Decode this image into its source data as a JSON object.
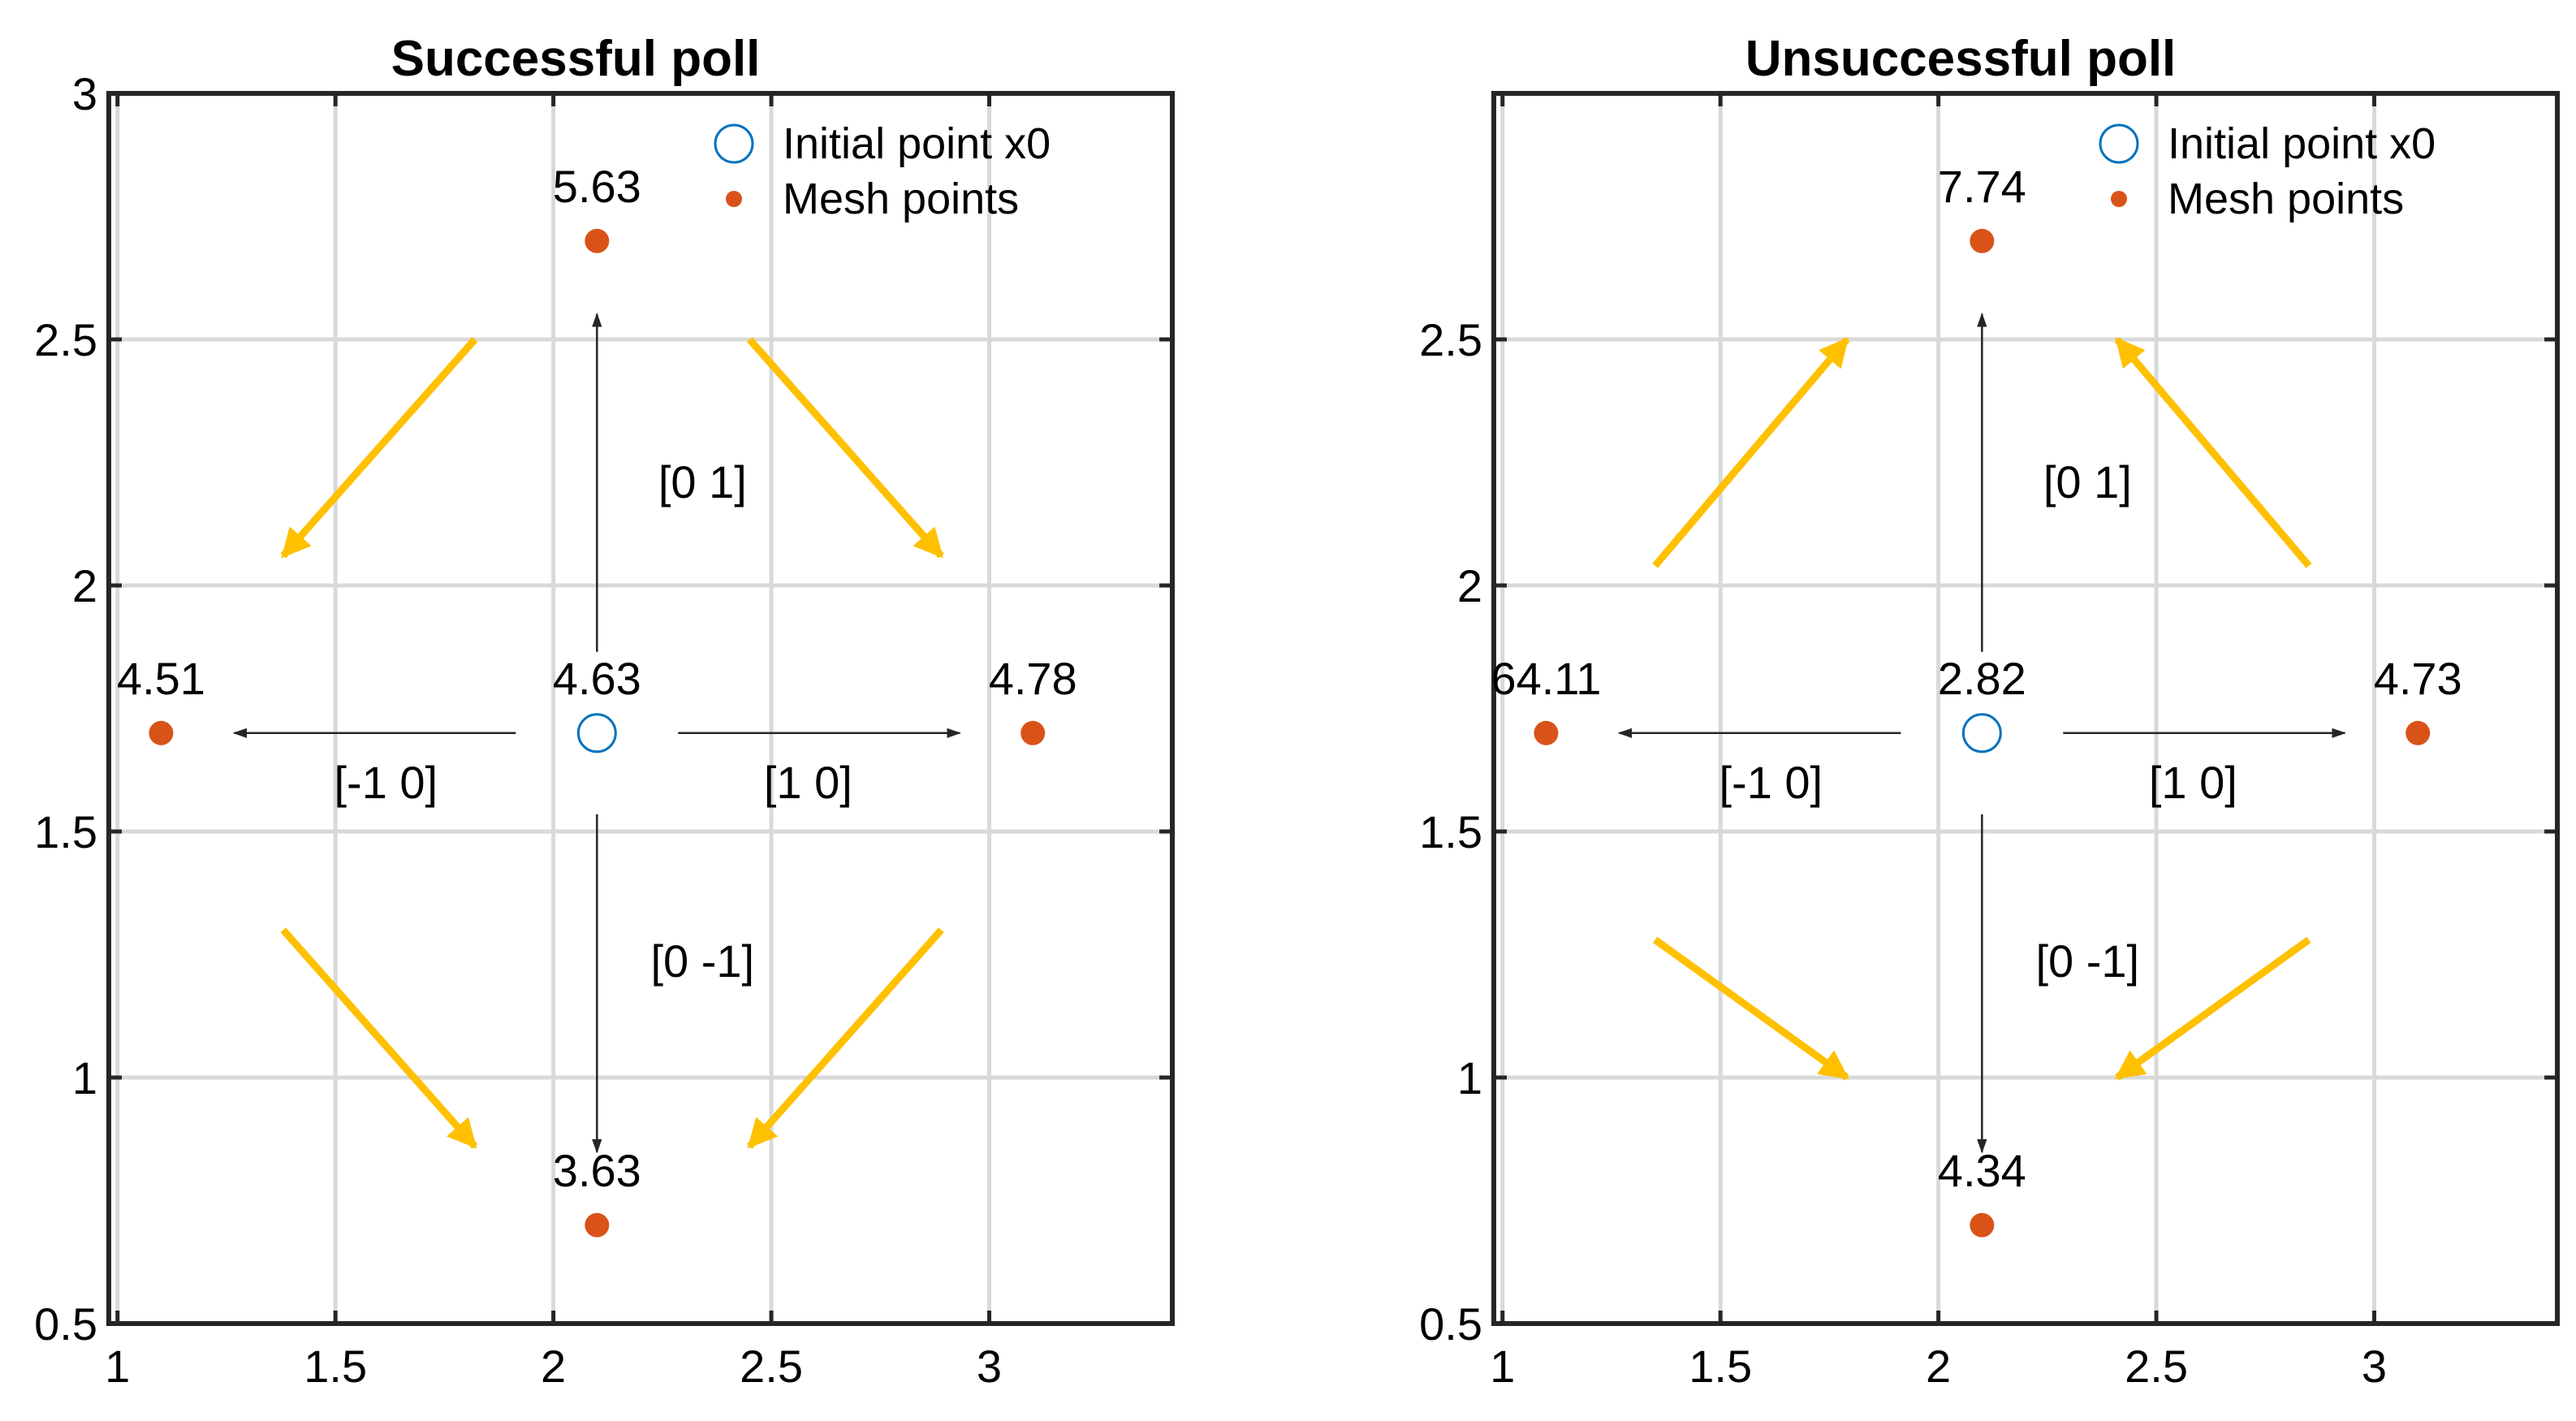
{
  "chart_data": [
    {
      "type": "scatter",
      "title": "Successful poll",
      "xlim": [
        0.98,
        3.42
      ],
      "ylim": [
        0.5,
        3.0
      ],
      "xticks": [
        1,
        1.5,
        2,
        2.5,
        3
      ],
      "xtick_labels": [
        "1",
        "1.5",
        "2",
        "2.5",
        "3"
      ],
      "yticks": [
        0.5,
        1,
        1.5,
        2,
        2.5,
        3
      ],
      "ytick_labels": [
        "0.5",
        "1",
        "1.5",
        "2",
        "2.5",
        "3"
      ],
      "grid": true,
      "legend": {
        "position": "top-right",
        "entries": [
          "Initial point x0",
          "Mesh points"
        ]
      },
      "initial_point": {
        "x": 2.1,
        "y": 1.7,
        "value": "4.63"
      },
      "mesh_points": [
        {
          "x": 2.1,
          "y": 2.7,
          "value": "5.63",
          "direction": "[0  1]"
        },
        {
          "x": 1.1,
          "y": 1.7,
          "value": "4.51",
          "direction": "[-1  0]"
        },
        {
          "x": 3.1,
          "y": 1.7,
          "value": "4.78",
          "direction": "[1  0]"
        },
        {
          "x": 2.1,
          "y": 0.7,
          "value": "3.63",
          "direction": "[0 -1]"
        }
      ],
      "flow_arrows": [
        {
          "from": [
            1.82,
            2.5
          ],
          "to": [
            1.38,
            2.06
          ]
        },
        {
          "from": [
            2.45,
            2.5
          ],
          "to": [
            2.89,
            2.06
          ]
        },
        {
          "from": [
            1.38,
            1.3
          ],
          "to": [
            1.82,
            0.86
          ]
        },
        {
          "from": [
            2.89,
            1.3
          ],
          "to": [
            2.45,
            0.86
          ]
        }
      ]
    },
    {
      "type": "scatter",
      "title": "Unsuccessful poll",
      "xlim": [
        0.98,
        3.42
      ],
      "ylim": [
        0.5,
        3.0
      ],
      "xticks": [
        1,
        1.5,
        2,
        2.5,
        3
      ],
      "xtick_labels": [
        "1",
        "1.5",
        "2",
        "2.5",
        "3"
      ],
      "yticks": [
        0.5,
        1,
        1.5,
        2,
        2.5
      ],
      "ytick_labels": [
        "0.5",
        "1",
        "1.5",
        "2",
        "2.5"
      ],
      "grid": true,
      "legend": {
        "position": "top-right",
        "entries": [
          "Initial point x0",
          "Mesh points"
        ]
      },
      "initial_point": {
        "x": 2.1,
        "y": 1.7,
        "value": "2.82"
      },
      "mesh_points": [
        {
          "x": 2.1,
          "y": 2.7,
          "value": "7.74",
          "direction": "[0  1]"
        },
        {
          "x": 1.1,
          "y": 1.7,
          "value": "64.11",
          "direction": "[-1  0]"
        },
        {
          "x": 3.1,
          "y": 1.7,
          "value": "4.73",
          "direction": "[1  0]"
        },
        {
          "x": 2.1,
          "y": 0.7,
          "value": "4.34",
          "direction": "[0 -1]"
        }
      ],
      "flow_arrows": [
        {
          "from": [
            1.35,
            2.04
          ],
          "to": [
            1.79,
            2.5
          ]
        },
        {
          "from": [
            2.85,
            2.04
          ],
          "to": [
            2.41,
            2.5
          ]
        },
        {
          "from": [
            1.35,
            1.28
          ],
          "to": [
            1.79,
            1.0
          ]
        },
        {
          "from": [
            2.85,
            1.28
          ],
          "to": [
            2.41,
            1.0
          ]
        }
      ]
    }
  ],
  "colors": {
    "mesh_point": "#D95319",
    "initial_point": "#0072BD",
    "flow_arrow": "#FFC000",
    "direction_arrow": "#262626",
    "grid": "#D9D9D9",
    "axis": "#262626"
  }
}
